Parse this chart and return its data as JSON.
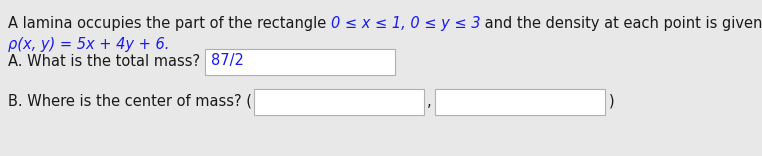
{
  "bg_color": "#e8e8e8",
  "text_color": "#1a1a1a",
  "blue_color": "#1a1aee",
  "box_facecolor": "#ffffff",
  "box_edgecolor": "#b0b0b0",
  "font_size": 10.5,
  "line1_part1": "A lamina occupies the part of the rectangle ",
  "line1_math": "0 ≤ x ≤ 1, 0 ≤ y ≤ 3",
  "line1_part2": " and the density at each point is given by the function",
  "line2": "ρ(x, y) = 5x + 4y + 6.",
  "partA_label": "A. What is the total mass?",
  "partA_answer": "87/2",
  "partB_label": "B. Where is the center of mass? (",
  "partB_comma": ",",
  "partB_end": ")"
}
